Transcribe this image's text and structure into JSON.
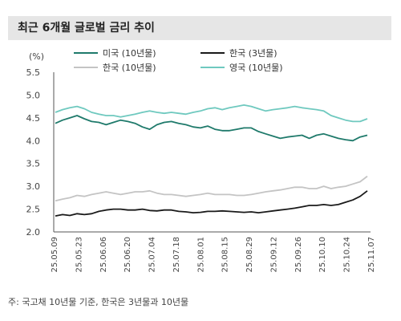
{
  "title": "최근 6개월 글로벌 금리 추이",
  "footnote": "주: 국고채 10년물 기준, 한국은 3년물과 10년물",
  "chart_data": {
    "type": "line",
    "ylabel": "(%)",
    "ylim": [
      2.0,
      5.5
    ],
    "yticks": [
      "5.5",
      "5.0",
      "4.5",
      "4.0",
      "3.5",
      "3.0",
      "2.5",
      "2.0"
    ],
    "x_tick_labels": [
      "25.05.09",
      "25.05.23",
      "25.06.06",
      "25.06.20",
      "25.07.04",
      "25.07.18",
      "25.08.01",
      "25.08.15",
      "25.08.29",
      "25.09.12",
      "25.09.26",
      "25.10.10",
      "25.10.24",
      "25.11.07"
    ],
    "grid": false,
    "legend_position": "top",
    "series": [
      {
        "name": "미국 (10년물)",
        "color": "#1f7a6b",
        "values": [
          4.38,
          4.45,
          4.5,
          4.55,
          4.48,
          4.42,
          4.4,
          4.35,
          4.4,
          4.45,
          4.42,
          4.38,
          4.3,
          4.25,
          4.35,
          4.4,
          4.42,
          4.38,
          4.35,
          4.3,
          4.28,
          4.32,
          4.25,
          4.22,
          4.22,
          4.25,
          4.28,
          4.28,
          4.2,
          4.15,
          4.1,
          4.05,
          4.08,
          4.1,
          4.12,
          4.05,
          4.12,
          4.15,
          4.1,
          4.05,
          4.02,
          4.0,
          4.08,
          4.12
        ]
      },
      {
        "name": "한국 (3년물)",
        "color": "#1a1a1a",
        "values": [
          2.35,
          2.38,
          2.36,
          2.4,
          2.38,
          2.4,
          2.45,
          2.48,
          2.5,
          2.5,
          2.48,
          2.48,
          2.5,
          2.47,
          2.46,
          2.48,
          2.48,
          2.45,
          2.44,
          2.42,
          2.43,
          2.45,
          2.45,
          2.46,
          2.45,
          2.44,
          2.43,
          2.44,
          2.42,
          2.44,
          2.46,
          2.48,
          2.5,
          2.52,
          2.55,
          2.58,
          2.58,
          2.6,
          2.58,
          2.6,
          2.65,
          2.7,
          2.78,
          2.9
        ]
      },
      {
        "name": "한국 (10년물)",
        "color": "#c4c4c4",
        "values": [
          2.68,
          2.72,
          2.75,
          2.8,
          2.78,
          2.82,
          2.85,
          2.88,
          2.85,
          2.82,
          2.85,
          2.88,
          2.88,
          2.9,
          2.85,
          2.82,
          2.82,
          2.8,
          2.78,
          2.8,
          2.82,
          2.85,
          2.82,
          2.82,
          2.82,
          2.8,
          2.8,
          2.82,
          2.85,
          2.88,
          2.9,
          2.92,
          2.95,
          2.98,
          2.98,
          2.95,
          2.95,
          3.0,
          2.95,
          2.98,
          3.0,
          3.05,
          3.1,
          3.22
        ]
      },
      {
        "name": "영국 (10년물)",
        "color": "#6fc9bf",
        "values": [
          4.62,
          4.68,
          4.72,
          4.75,
          4.7,
          4.62,
          4.58,
          4.55,
          4.55,
          4.52,
          4.55,
          4.58,
          4.62,
          4.65,
          4.62,
          4.6,
          4.62,
          4.6,
          4.58,
          4.62,
          4.65,
          4.7,
          4.72,
          4.68,
          4.72,
          4.75,
          4.78,
          4.75,
          4.7,
          4.65,
          4.68,
          4.7,
          4.72,
          4.75,
          4.72,
          4.7,
          4.68,
          4.65,
          4.55,
          4.5,
          4.45,
          4.42,
          4.42,
          4.48
        ]
      }
    ]
  }
}
